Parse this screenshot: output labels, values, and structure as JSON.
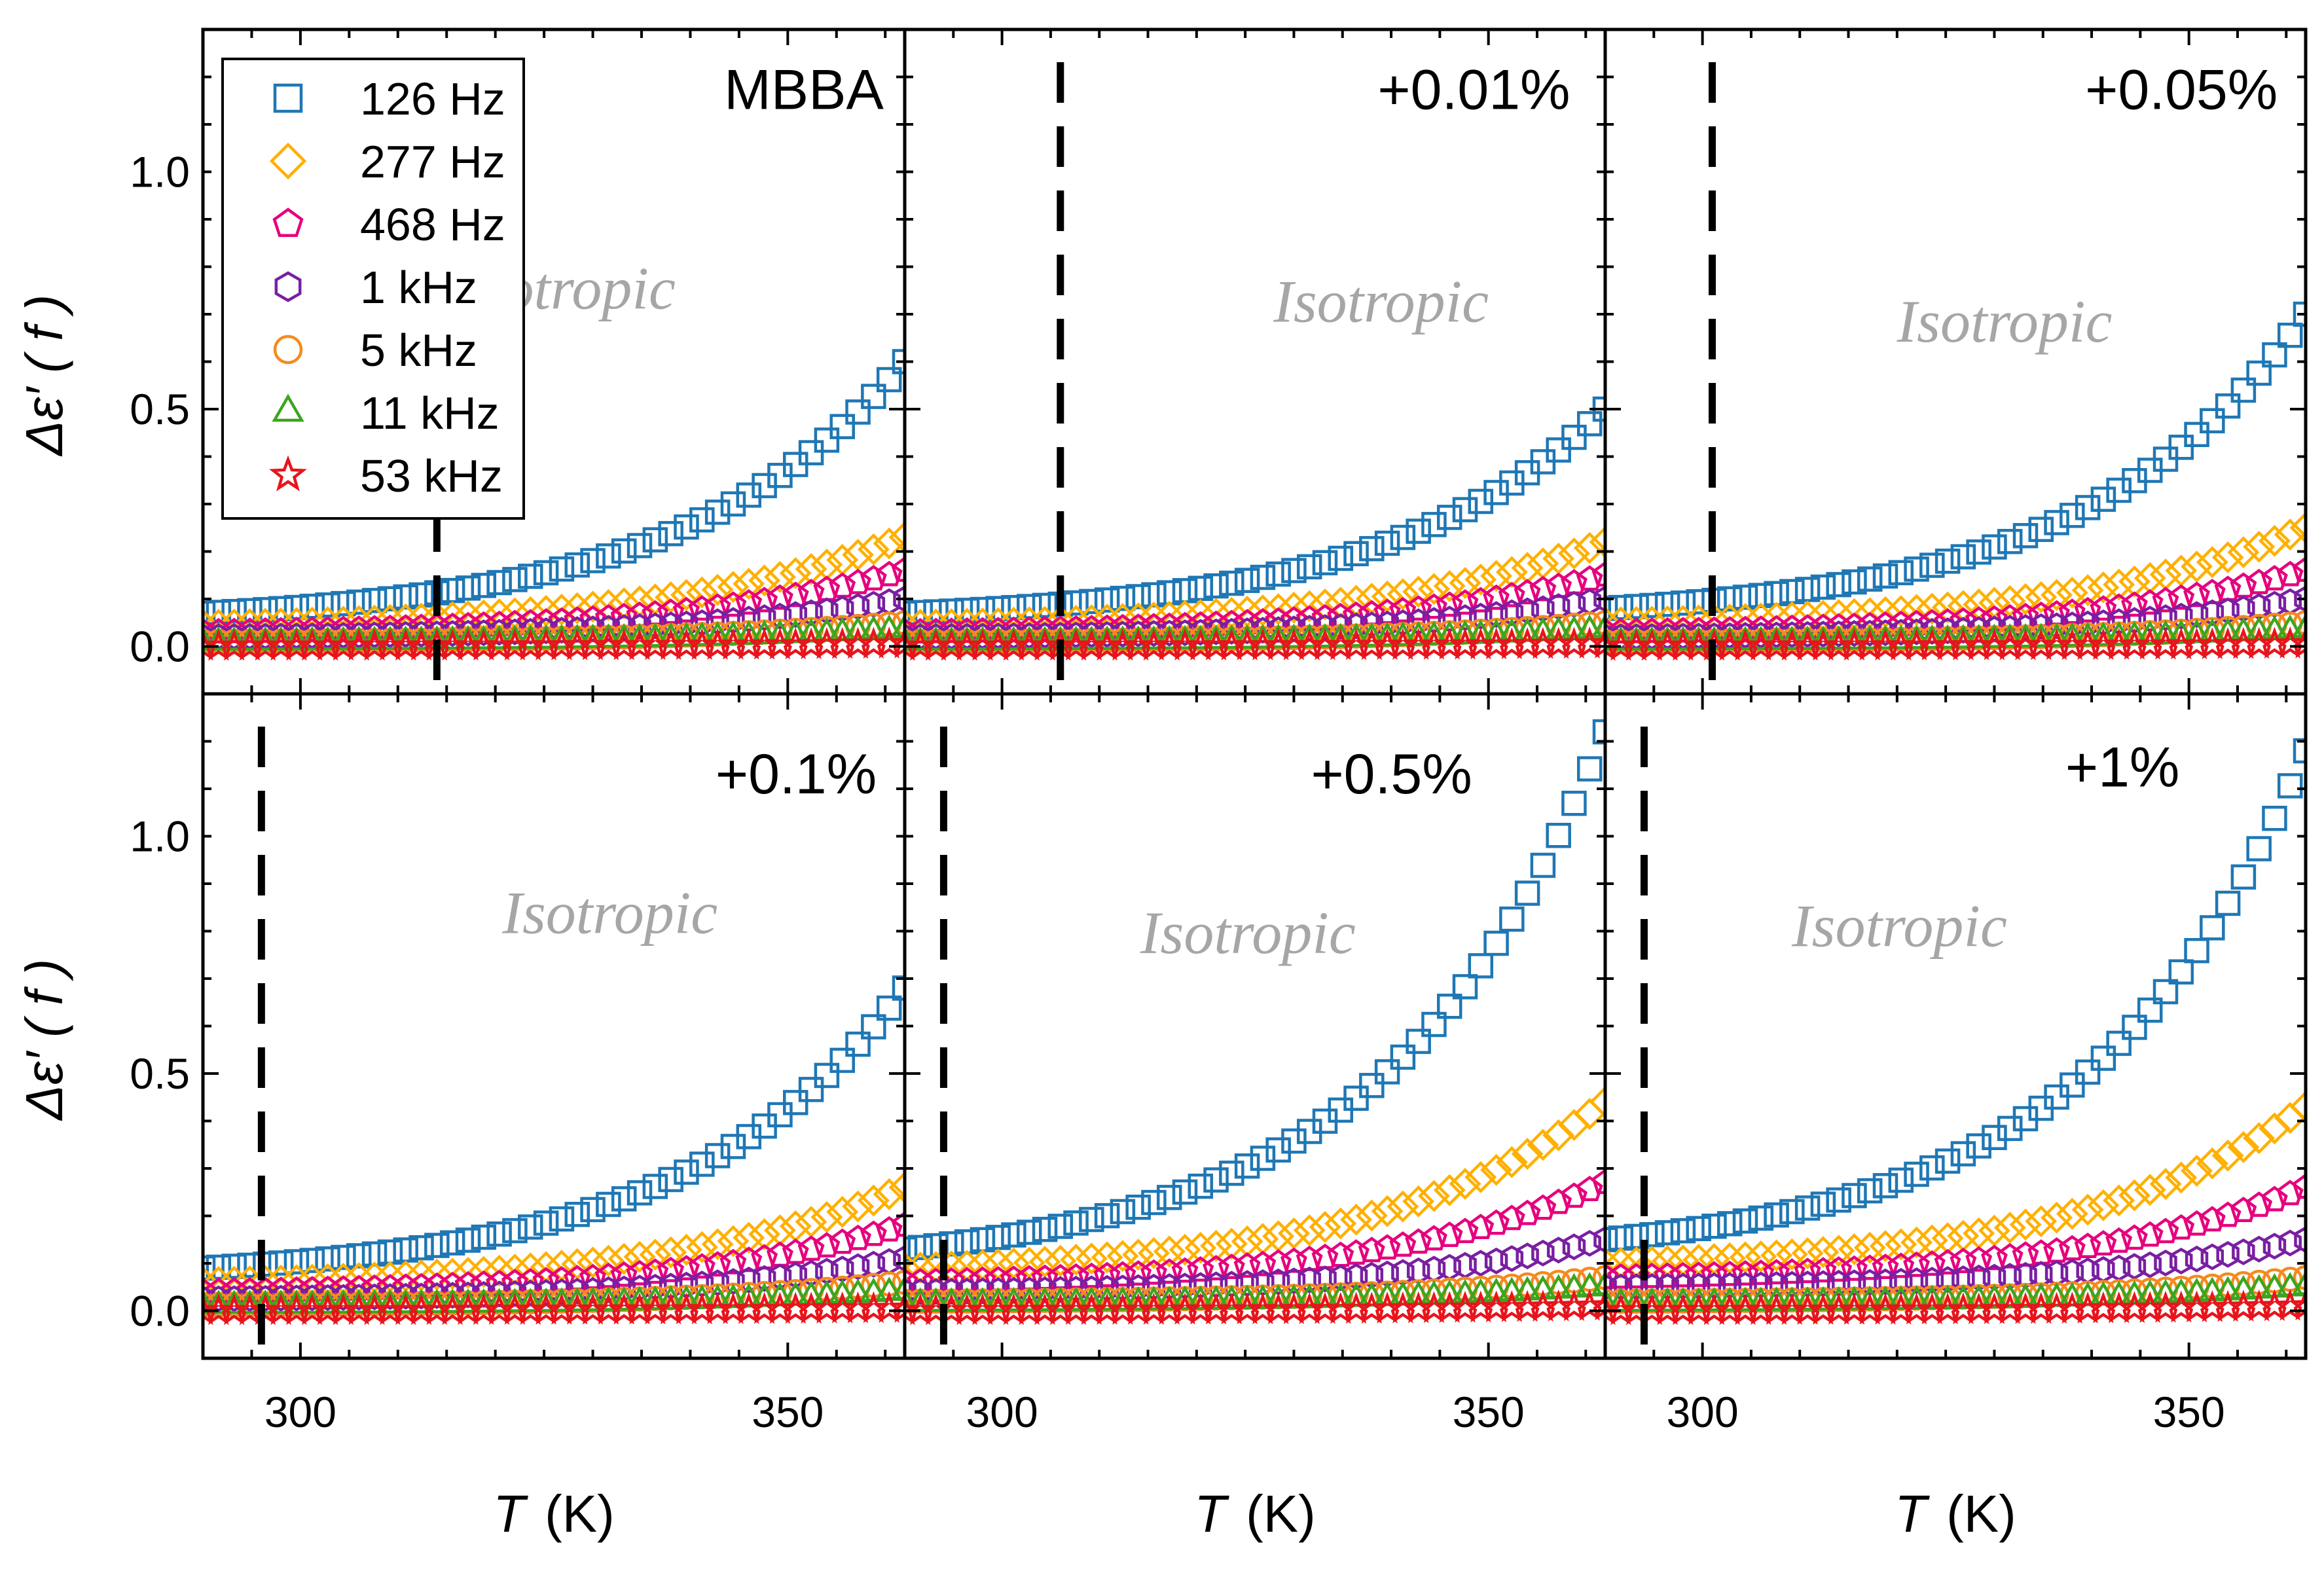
{
  "chart_data": {
    "type": "scatter",
    "layout": "2x3 panel grid with shared axes",
    "xlabel_symbol": "T",
    "xlabel_unit": "(K)",
    "ylabel": "Δε′ ( f )",
    "xlim": [
      290,
      362
    ],
    "ylim": [
      -0.1,
      1.3
    ],
    "xticks": [
      300,
      350
    ],
    "xtick_labels": [
      "300",
      "350"
    ],
    "yticks": [
      0.0,
      0.5,
      1.0
    ],
    "ytick_labels": [
      "0.0",
      "0.5",
      "1.0"
    ],
    "series_styles": [
      {
        "name": "126 Hz",
        "marker": "square",
        "color": "#1f77b4"
      },
      {
        "name": "277 Hz",
        "marker": "diamond",
        "color": "#ffb000"
      },
      {
        "name": "468 Hz",
        "marker": "pentagon",
        "color": "#e6007e"
      },
      {
        "name": "1 kHz",
        "marker": "hexagon",
        "color": "#7a1fa2"
      },
      {
        "name": "5 kHz",
        "marker": "circle",
        "color": "#f58a1f"
      },
      {
        "name": "11 kHz",
        "marker": "triangle",
        "color": "#3aa61e"
      },
      {
        "name": "53 kHz",
        "marker": "star",
        "color": "#e8141c"
      }
    ],
    "legend_location": "top-left of first panel",
    "panels": [
      {
        "label": "MBBA",
        "region_label": "Isotropic",
        "transition_T": 314,
        "end_values": {
          "126 Hz": 0.6,
          "277 Hz": 0.23,
          "468 Hz": 0.16,
          "1 kHz": 0.1,
          "5 kHz": 0.05,
          "11 kHz": 0.035,
          "53 kHz": 0.005
        },
        "start_values": {
          "126 Hz": 0.07,
          "277 Hz": 0.045,
          "468 Hz": 0.03,
          "1 kHz": 0.02,
          "5 kHz": 0.01,
          "11 kHz": 0.008,
          "53 kHz": 0.0
        }
      },
      {
        "label": "+0.01%",
        "region_label": "Isotropic",
        "transition_T": 306,
        "end_values": {
          "126 Hz": 0.5,
          "277 Hz": 0.22,
          "468 Hz": 0.15,
          "1 kHz": 0.1,
          "5 kHz": 0.05,
          "11 kHz": 0.035,
          "53 kHz": 0.005
        },
        "start_values": {
          "126 Hz": 0.07,
          "277 Hz": 0.045,
          "468 Hz": 0.03,
          "1 kHz": 0.02,
          "5 kHz": 0.01,
          "11 kHz": 0.008,
          "53 kHz": 0.0
        }
      },
      {
        "label": "+0.05%",
        "region_label": "Isotropic",
        "transition_T": 301,
        "end_values": {
          "126 Hz": 0.7,
          "277 Hz": 0.25,
          "468 Hz": 0.16,
          "1 kHz": 0.1,
          "5 kHz": 0.05,
          "11 kHz": 0.035,
          "53 kHz": 0.005
        },
        "start_values": {
          "126 Hz": 0.08,
          "277 Hz": 0.05,
          "468 Hz": 0.03,
          "1 kHz": 0.02,
          "5 kHz": 0.01,
          "11 kHz": 0.008,
          "53 kHz": 0.0
        }
      },
      {
        "label": "+0.1%",
        "region_label": "Isotropic",
        "transition_T": 296,
        "end_values": {
          "126 Hz": 0.68,
          "277 Hz": 0.26,
          "468 Hz": 0.18,
          "1 kHz": 0.11,
          "5 kHz": 0.06,
          "11 kHz": 0.04,
          "53 kHz": 0.005
        },
        "start_values": {
          "126 Hz": 0.09,
          "277 Hz": 0.06,
          "468 Hz": 0.04,
          "1 kHz": 0.025,
          "5 kHz": 0.012,
          "11 kHz": 0.01,
          "53 kHz": 0.0
        }
      },
      {
        "label": "+0.5%",
        "region_label": "Isotropic",
        "transition_T": 294,
        "end_values": {
          "126 Hz": 1.22,
          "277 Hz": 0.44,
          "468 Hz": 0.27,
          "1 kHz": 0.15,
          "5 kHz": 0.07,
          "11 kHz": 0.05,
          "53 kHz": 0.01
        },
        "start_values": {
          "126 Hz": 0.13,
          "277 Hz": 0.09,
          "468 Hz": 0.06,
          "1 kHz": 0.04,
          "5 kHz": 0.02,
          "11 kHz": 0.015,
          "53 kHz": 0.0
        }
      },
      {
        "label": "+1%",
        "region_label": "Isotropic",
        "transition_T": 294,
        "end_values": {
          "126 Hz": 1.18,
          "277 Hz": 0.43,
          "468 Hz": 0.26,
          "1 kHz": 0.15,
          "5 kHz": 0.07,
          "11 kHz": 0.05,
          "53 kHz": 0.01
        },
        "start_values": {
          "126 Hz": 0.15,
          "277 Hz": 0.1,
          "468 Hz": 0.07,
          "1 kHz": 0.05,
          "5 kHz": 0.02,
          "11 kHz": 0.015,
          "53 kHz": 0.0
        }
      }
    ]
  }
}
